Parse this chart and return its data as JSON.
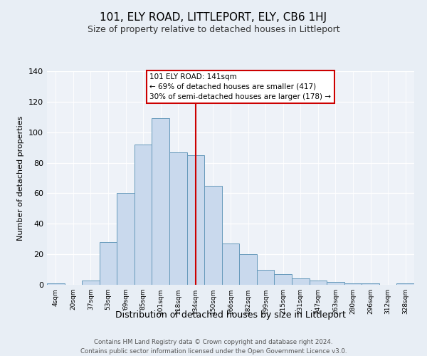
{
  "title": "101, ELY ROAD, LITTLEPORT, ELY, CB6 1HJ",
  "subtitle": "Size of property relative to detached houses in Littleport",
  "xlabel": "Distribution of detached houses by size in Littleport",
  "ylabel": "Number of detached properties",
  "bar_labels": [
    "4sqm",
    "20sqm",
    "37sqm",
    "53sqm",
    "69sqm",
    "85sqm",
    "101sqm",
    "118sqm",
    "134sqm",
    "150sqm",
    "166sqm",
    "182sqm",
    "199sqm",
    "215sqm",
    "231sqm",
    "247sqm",
    "263sqm",
    "280sqm",
    "296sqm",
    "312sqm",
    "328sqm"
  ],
  "bar_heights": [
    1,
    0,
    3,
    28,
    60,
    92,
    109,
    87,
    85,
    65,
    27,
    20,
    10,
    7,
    4,
    3,
    2,
    1,
    1,
    0,
    1
  ],
  "bar_color": "#c9d9ed",
  "bar_edge_color": "#6699bb",
  "vline_x": 8.5,
  "vline_color": "#cc0000",
  "annotation_title": "101 ELY ROAD: 141sqm",
  "annotation_line2": "← 69% of detached houses are smaller (417)",
  "annotation_line3": "30% of semi-detached houses are larger (178) →",
  "annotation_box_edge_color": "#cc0000",
  "ylim": [
    0,
    140
  ],
  "yticks": [
    0,
    20,
    40,
    60,
    80,
    100,
    120,
    140
  ],
  "footer_line1": "Contains HM Land Registry data © Crown copyright and database right 2024.",
  "footer_line2": "Contains public sector information licensed under the Open Government Licence v3.0.",
  "bg_color": "#e8eef5",
  "plot_bg_color": "#eef2f8",
  "title_fontsize": 11,
  "subtitle_fontsize": 9
}
